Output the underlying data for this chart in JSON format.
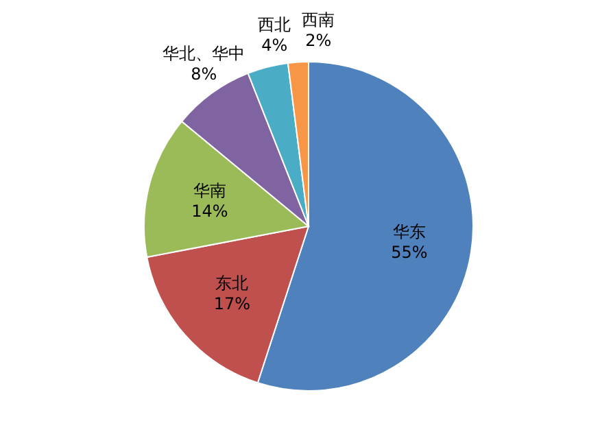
{
  "chart_data": {
    "type": "pie",
    "categories": [
      "华东",
      "东北",
      "华南",
      "华北、华中",
      "西北",
      "西南"
    ],
    "values": [
      55,
      17,
      14,
      8,
      4,
      2
    ],
    "value_labels": [
      "55%",
      "17%",
      "14%",
      "8%",
      "4%",
      "2%"
    ],
    "colors": [
      "#4f81bd",
      "#c0504d",
      "#9bbb59",
      "#8064a2",
      "#4bacc6",
      "#f79646"
    ]
  }
}
